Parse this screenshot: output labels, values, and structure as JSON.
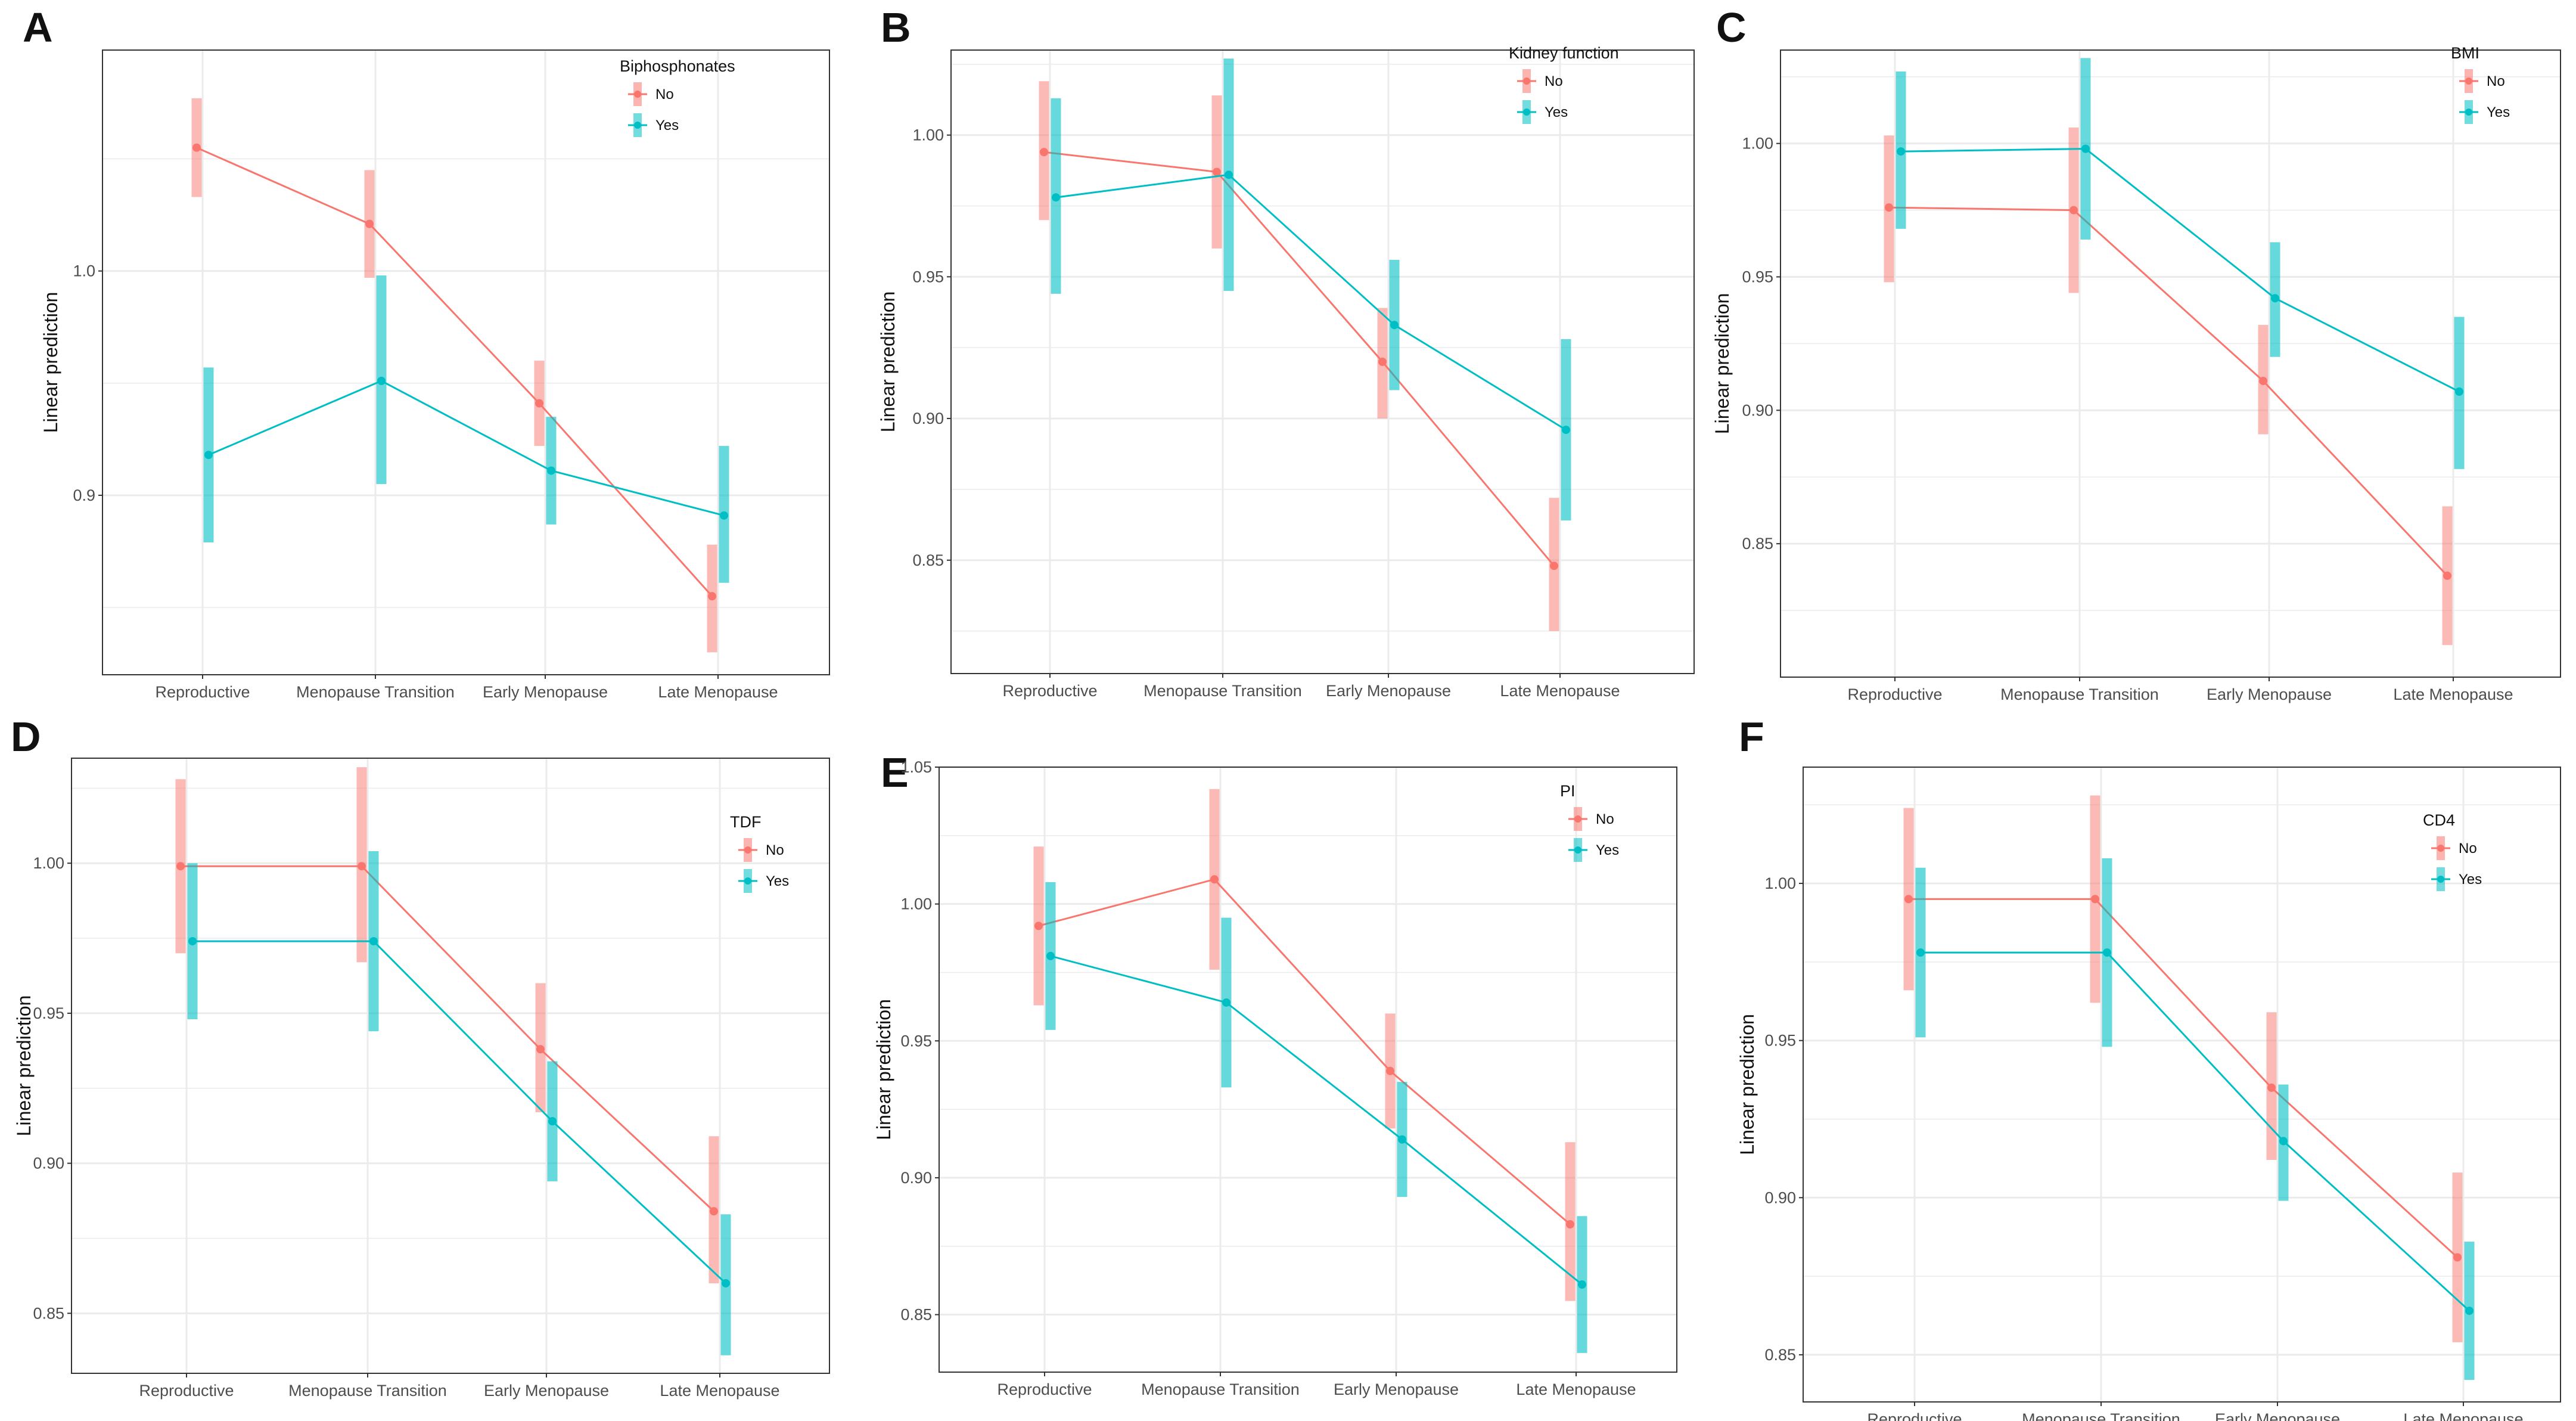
{
  "colors": {
    "no": "#F8766D",
    "yes": "#00BFC4",
    "grid": "#EBEBEB",
    "frame": "#333333"
  },
  "chart_data": [
    {
      "panel": "A",
      "type": "line",
      "categories": [
        "Reproductive",
        "Menopause Transition",
        "Early Menopause",
        "Late Menopause"
      ],
      "ylabel": "Linear prediction",
      "legend_title": "Biphosphonates",
      "legend_position": "top-right",
      "ylim": [
        0.82,
        1.0985
      ],
      "yticks": [
        0.9,
        1.0
      ],
      "ytick_labels": [
        "0.9",
        "1.0"
      ],
      "series": [
        {
          "name": "No",
          "values": [
            1.055,
            1.021,
            0.941,
            0.855
          ],
          "lower": [
            1.033,
            0.997,
            0.922,
            0.83
          ],
          "upper": [
            1.077,
            1.045,
            0.96,
            0.878
          ]
        },
        {
          "name": "Yes",
          "values": [
            0.918,
            0.951,
            0.911,
            0.891
          ],
          "lower": [
            0.879,
            0.905,
            0.887,
            0.861
          ],
          "upper": [
            0.957,
            0.998,
            0.935,
            0.922
          ]
        }
      ]
    },
    {
      "panel": "B",
      "type": "line",
      "categories": [
        "Reproductive",
        "Menopause Transition",
        "Early Menopause",
        "Late Menopause"
      ],
      "ylabel": "Linear prediction",
      "legend_title": "Kidney function",
      "legend_position": "top-right",
      "ylim": [
        0.81,
        1.03
      ],
      "yticks": [
        0.85,
        0.9,
        0.95,
        1.0
      ],
      "ytick_labels": [
        "0.85",
        "0.90",
        "0.95",
        "1.00"
      ],
      "series": [
        {
          "name": "No",
          "values": [
            0.994,
            0.987,
            0.92,
            0.848
          ],
          "lower": [
            0.97,
            0.96,
            0.9,
            0.825
          ],
          "upper": [
            1.019,
            1.014,
            0.939,
            0.872
          ]
        },
        {
          "name": "Yes",
          "values": [
            0.978,
            0.986,
            0.933,
            0.896
          ],
          "lower": [
            0.944,
            0.945,
            0.91,
            0.864
          ],
          "upper": [
            1.013,
            1.027,
            0.956,
            0.928
          ]
        }
      ]
    },
    {
      "panel": "C",
      "type": "line",
      "categories": [
        "Reproductive",
        "Menopause Transition",
        "Early Menopause",
        "Late Menopause"
      ],
      "ylabel": "Linear prediction",
      "legend_title": "BMI",
      "legend_position": "top-right",
      "ylim": [
        0.8,
        1.035
      ],
      "yticks": [
        0.85,
        0.9,
        0.95,
        1.0
      ],
      "ytick_labels": [
        "0.85",
        "0.90",
        "0.95",
        "1.00"
      ],
      "series": [
        {
          "name": "No",
          "values": [
            0.976,
            0.975,
            0.911,
            0.838
          ],
          "lower": [
            0.948,
            0.944,
            0.891,
            0.812
          ],
          "upper": [
            1.003,
            1.006,
            0.932,
            0.864
          ]
        },
        {
          "name": "Yes",
          "values": [
            0.997,
            0.998,
            0.942,
            0.907
          ],
          "lower": [
            0.968,
            0.964,
            0.92,
            0.878
          ],
          "upper": [
            1.027,
            1.032,
            0.963,
            0.935
          ]
        }
      ]
    },
    {
      "panel": "D",
      "type": "line",
      "categories": [
        "Reproductive",
        "Menopause Transition",
        "Early Menopause",
        "Late Menopause"
      ],
      "ylabel": "Linear prediction",
      "legend_title": "TDF",
      "legend_position": "top-right",
      "ylim": [
        0.83,
        1.035
      ],
      "yticks": [
        0.85,
        0.9,
        0.95,
        1.0
      ],
      "ytick_labels": [
        "0.85",
        "0.90",
        "0.95",
        "1.00"
      ],
      "series": [
        {
          "name": "No",
          "values": [
            0.999,
            0.999,
            0.938,
            0.884
          ],
          "lower": [
            0.97,
            0.967,
            0.917,
            0.86
          ],
          "upper": [
            1.028,
            1.032,
            0.96,
            0.909
          ]
        },
        {
          "name": "Yes",
          "values": [
            0.974,
            0.974,
            0.914,
            0.86
          ],
          "lower": [
            0.948,
            0.944,
            0.894,
            0.836
          ],
          "upper": [
            1.0,
            1.004,
            0.934,
            0.883
          ]
        }
      ]
    },
    {
      "panel": "E",
      "type": "line",
      "categories": [
        "Reproductive",
        "Menopause Transition",
        "Early Menopause",
        "Late Menopause"
      ],
      "ylabel": "Linear prediction",
      "legend_title": "PI",
      "legend_position": "top-right",
      "ylim": [
        0.829,
        1.05
      ],
      "yticks": [
        0.85,
        0.9,
        0.95,
        1.0,
        1.05
      ],
      "ytick_labels": [
        "0.85",
        "0.90",
        "0.95",
        "1.00",
        "1.05"
      ],
      "series": [
        {
          "name": "No",
          "values": [
            0.992,
            1.009,
            0.939,
            0.883
          ],
          "lower": [
            0.963,
            0.976,
            0.918,
            0.855
          ],
          "upper": [
            1.021,
            1.042,
            0.96,
            0.913
          ]
        },
        {
          "name": "Yes",
          "values": [
            0.981,
            0.964,
            0.914,
            0.861
          ],
          "lower": [
            0.954,
            0.933,
            0.893,
            0.836
          ],
          "upper": [
            1.008,
            0.995,
            0.935,
            0.886
          ]
        }
      ]
    },
    {
      "panel": "F",
      "type": "line",
      "categories": [
        "Reproductive",
        "Menopause Transition",
        "Early Menopause",
        "Late Menopause"
      ],
      "ylabel": "Linear prediction",
      "legend_title": "CD4",
      "legend_position": "top-right",
      "ylim": [
        0.835,
        1.037
      ],
      "yticks": [
        0.85,
        0.9,
        0.95,
        1.0
      ],
      "ytick_labels": [
        "0.85",
        "0.90",
        "0.95",
        "1.00"
      ],
      "series": [
        {
          "name": "No",
          "values": [
            0.995,
            0.995,
            0.935,
            0.881
          ],
          "lower": [
            0.966,
            0.962,
            0.912,
            0.854
          ],
          "upper": [
            1.024,
            1.028,
            0.959,
            0.908
          ]
        },
        {
          "name": "Yes",
          "values": [
            0.978,
            0.978,
            0.918,
            0.864
          ],
          "lower": [
            0.951,
            0.948,
            0.899,
            0.842
          ],
          "upper": [
            1.005,
            1.008,
            0.936,
            0.886
          ]
        }
      ]
    }
  ]
}
